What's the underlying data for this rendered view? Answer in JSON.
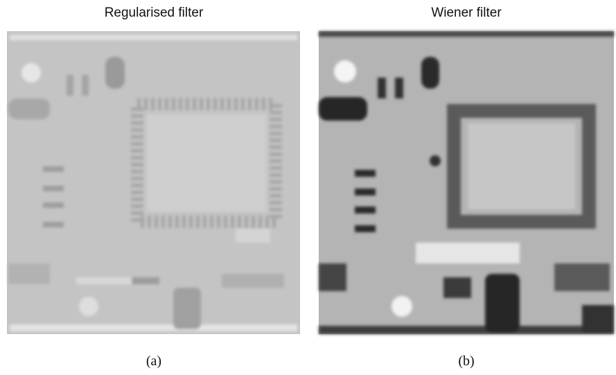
{
  "panels": [
    {
      "title": "Regularised filter",
      "caption": "(a)"
    },
    {
      "title": "Wiener filter",
      "caption": "(b)"
    }
  ]
}
